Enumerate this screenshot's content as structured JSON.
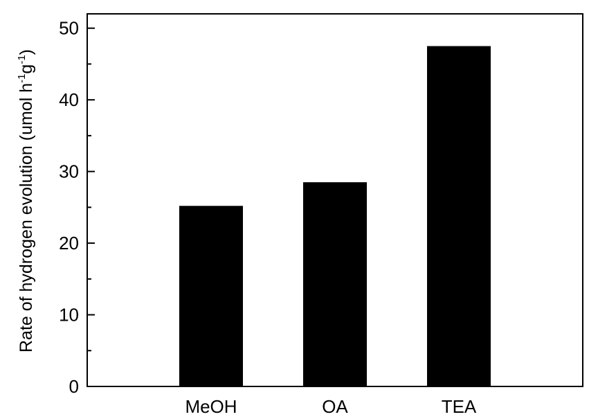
{
  "chart_data": {
    "type": "bar",
    "title": "",
    "xlabel": "",
    "ylabel": {
      "prefix": "Rate of hydrogen evolution (umol h",
      "h_exp": "-1",
      "mid": "g",
      "g_exp": "-1",
      "suffix": ")"
    },
    "categories": [
      "MeOH",
      "OA",
      "TEA"
    ],
    "values": [
      25.2,
      28.5,
      47.5
    ],
    "ylim": [
      0,
      52
    ],
    "yticks": [
      0,
      10,
      20,
      30,
      40,
      50
    ],
    "grid": false,
    "legend": "none",
    "bar_color": "#000000",
    "axis_color": "#000000"
  }
}
